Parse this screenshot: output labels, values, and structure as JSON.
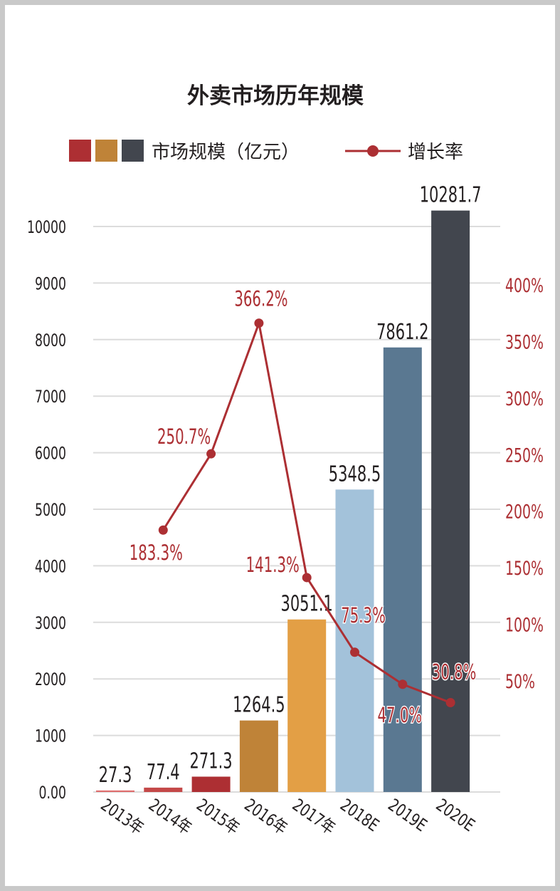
{
  "chart_data": {
    "type": "bar+line",
    "title": "外卖市场历年规模",
    "categories": [
      "2013年",
      "2014年",
      "2015年",
      "2016年",
      "2017年",
      "2018E",
      "2019E",
      "2020E"
    ],
    "series": [
      {
        "name": "市场规模（亿元）",
        "type": "bar",
        "axis": "left",
        "values": [
          27.3,
          77.4,
          271.3,
          1264.5,
          3051.1,
          5348.5,
          7861.2,
          10281.7
        ],
        "labels": [
          "27.3",
          "77.4",
          "271.3",
          "1264.5",
          "3051.1",
          "5348.5",
          "7861.2",
          "10281.7"
        ],
        "colors": [
          "#df6e6e",
          "#c44848",
          "#ad2f33",
          "#bf8338",
          "#e39f45",
          "#a3c2da",
          "#5a7891",
          "#42464e"
        ]
      },
      {
        "name": "增长率",
        "type": "line",
        "axis": "right",
        "color": "#ac2f33",
        "values": [
          null,
          183.3,
          250.7,
          366.2,
          141.3,
          75.3,
          47.0,
          30.8
        ],
        "labels": [
          "",
          "183.3%",
          "250.7%",
          "366.2%",
          "141.3%",
          "75.3%",
          "47.0%",
          "30.8%"
        ]
      }
    ],
    "left_axis": {
      "ylim": [
        0,
        10000
      ],
      "ticks": [
        0,
        1000,
        2000,
        3000,
        4000,
        5000,
        6000,
        7000,
        8000,
        9000,
        10000
      ],
      "tick_labels": [
        "0.00",
        "1000",
        "2000",
        "3000",
        "4000",
        "5000",
        "6000",
        "7000",
        "8000",
        "9000",
        "10000"
      ]
    },
    "right_axis": {
      "ticks": [
        50,
        100,
        150,
        200,
        250,
        300,
        350,
        400
      ],
      "tick_labels": [
        "50%",
        "100%",
        "150%",
        "200%",
        "250%",
        "300%",
        "350%",
        "400%"
      ],
      "color": "#ac2f33"
    },
    "legend": {
      "placement": "top",
      "bar_label": "市场规模（亿元）",
      "line_label": "增长率",
      "swatches": [
        "#ad2f33",
        "#bf8338",
        "#42464e"
      ]
    },
    "grid": true,
    "grid_color": "#dcdcdc",
    "text_color": "#231f20"
  }
}
